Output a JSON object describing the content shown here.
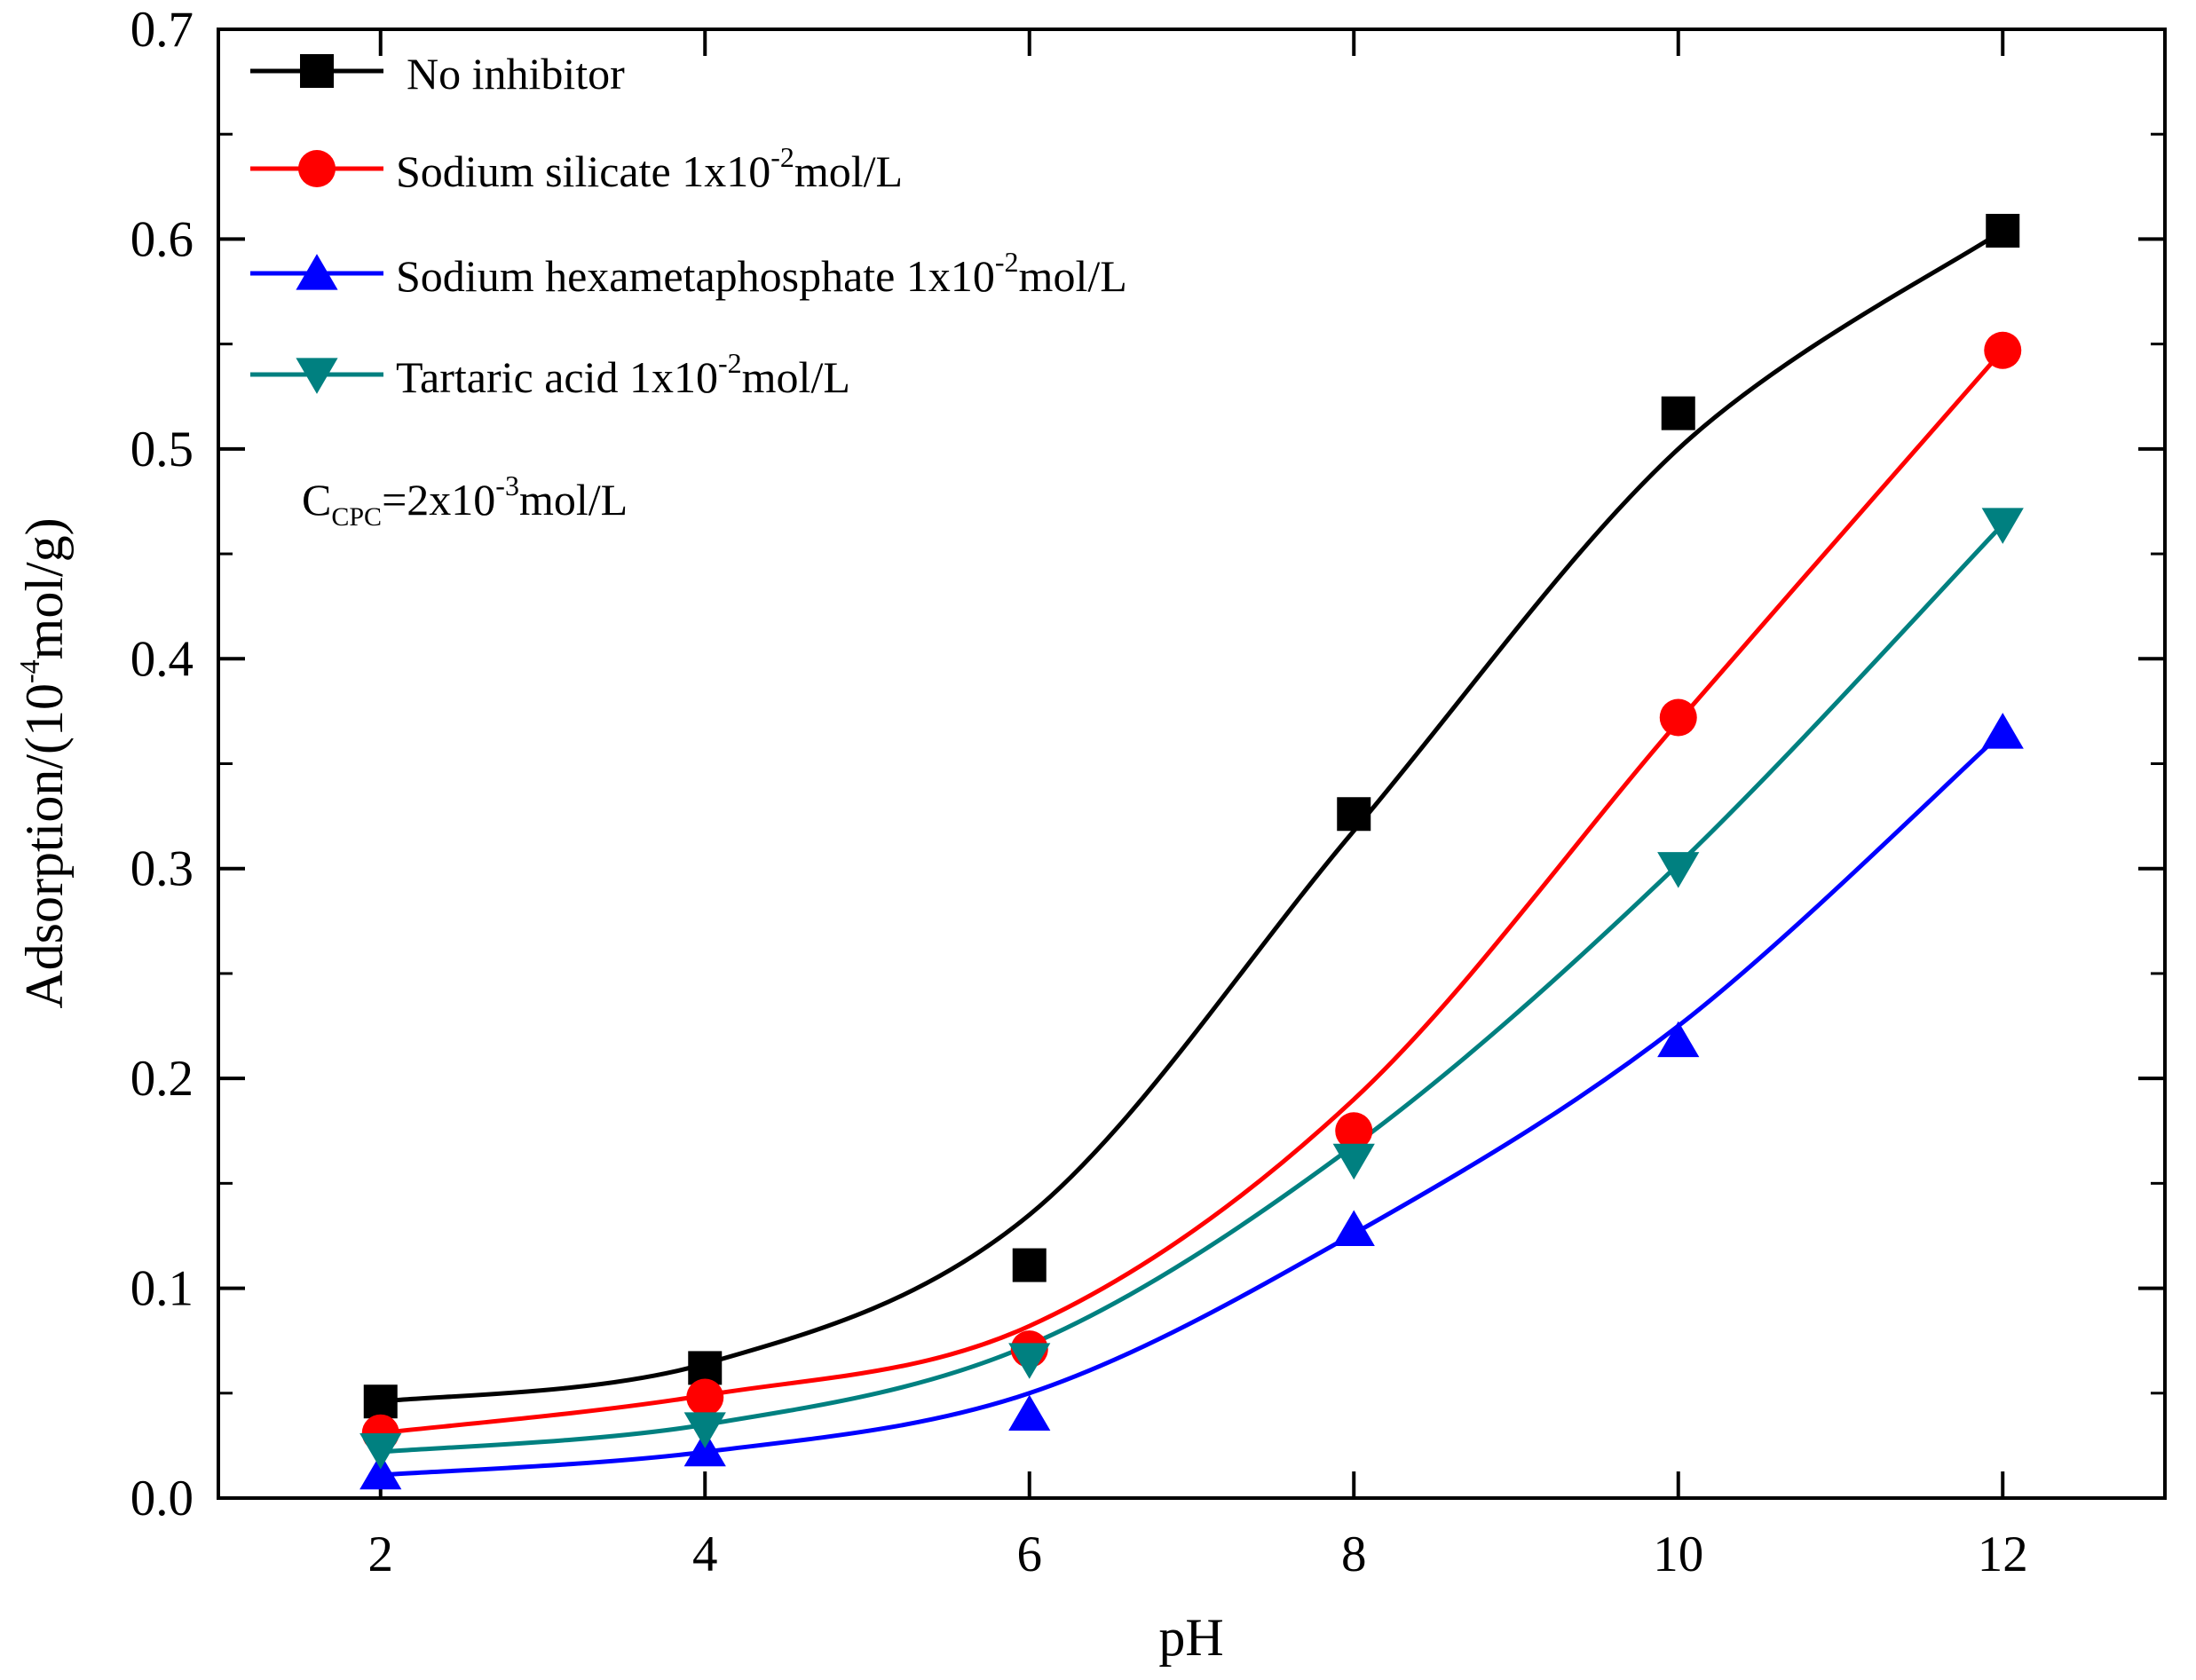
{
  "chart_data": {
    "type": "line",
    "title": "",
    "xlabel": "pH",
    "ylabel": {
      "prefix": "Adsorption/(10",
      "exp": "-4",
      "suffix": "mol/g)"
    },
    "xlim": [
      1,
      13
    ],
    "ylim": [
      0.0,
      0.7
    ],
    "x_ticks": [
      2,
      4,
      6,
      8,
      10,
      12
    ],
    "x_tick_labels": [
      "2",
      "4",
      "6",
      "8",
      "10",
      "12"
    ],
    "y_ticks": [
      0.0,
      0.1,
      0.2,
      0.3,
      0.4,
      0.5,
      0.6,
      0.7
    ],
    "y_tick_labels": [
      "0.0",
      "0.1",
      "0.2",
      "0.3",
      "0.4",
      "0.5",
      "0.6",
      "0.7"
    ],
    "x": [
      2,
      4,
      6,
      8,
      10,
      12
    ],
    "series": [
      {
        "name": "No inhibitor",
        "label_parts": [
          "No inhibitor"
        ],
        "color": "#000000",
        "marker": "square",
        "values": [
          0.046,
          0.062,
          0.111,
          0.326,
          0.517,
          0.604
        ],
        "fit": [
          0.046,
          0.064,
          0.135,
          0.318,
          0.5,
          0.604
        ]
      },
      {
        "name": "Sodium silicate 1x10-2mol/L",
        "label_parts": [
          "Sodium silicate 1x10",
          "-2",
          "mol/L"
        ],
        "color": "#ff0000",
        "marker": "circle",
        "values": [
          0.031,
          0.048,
          0.071,
          0.175,
          0.372,
          0.547
        ],
        "fit": [
          0.031,
          0.049,
          0.082,
          0.19,
          0.37,
          0.547
        ]
      },
      {
        "name": "Sodium hexametaphosphate 1x10-2mol/L",
        "label_parts": [
          "Sodium hexametaphosphate 1x10",
          "-2",
          "mol/L"
        ],
        "color": "#0000ff",
        "marker": "triangle-up",
        "values": [
          0.012,
          0.023,
          0.04,
          0.128,
          0.218,
          0.365
        ],
        "fit": [
          0.011,
          0.022,
          0.05,
          0.126,
          0.225,
          0.365
        ]
      },
      {
        "name": "Tartaric acid 1x10-2mol/L",
        "label_parts": [
          "Tartaric acid 1x10",
          "-2",
          "mol/L"
        ],
        "color": "#008080",
        "marker": "triangle-down",
        "values": [
          0.023,
          0.033,
          0.066,
          0.161,
          0.3,
          0.464
        ],
        "fit": [
          0.022,
          0.035,
          0.073,
          0.168,
          0.302,
          0.464
        ]
      }
    ],
    "legend_position": "top-left",
    "annotation": {
      "base": "C",
      "sub": "CPC",
      "mid": "=2x10",
      "exp": "-3",
      "suffix": "mol/L"
    },
    "grid": false
  }
}
